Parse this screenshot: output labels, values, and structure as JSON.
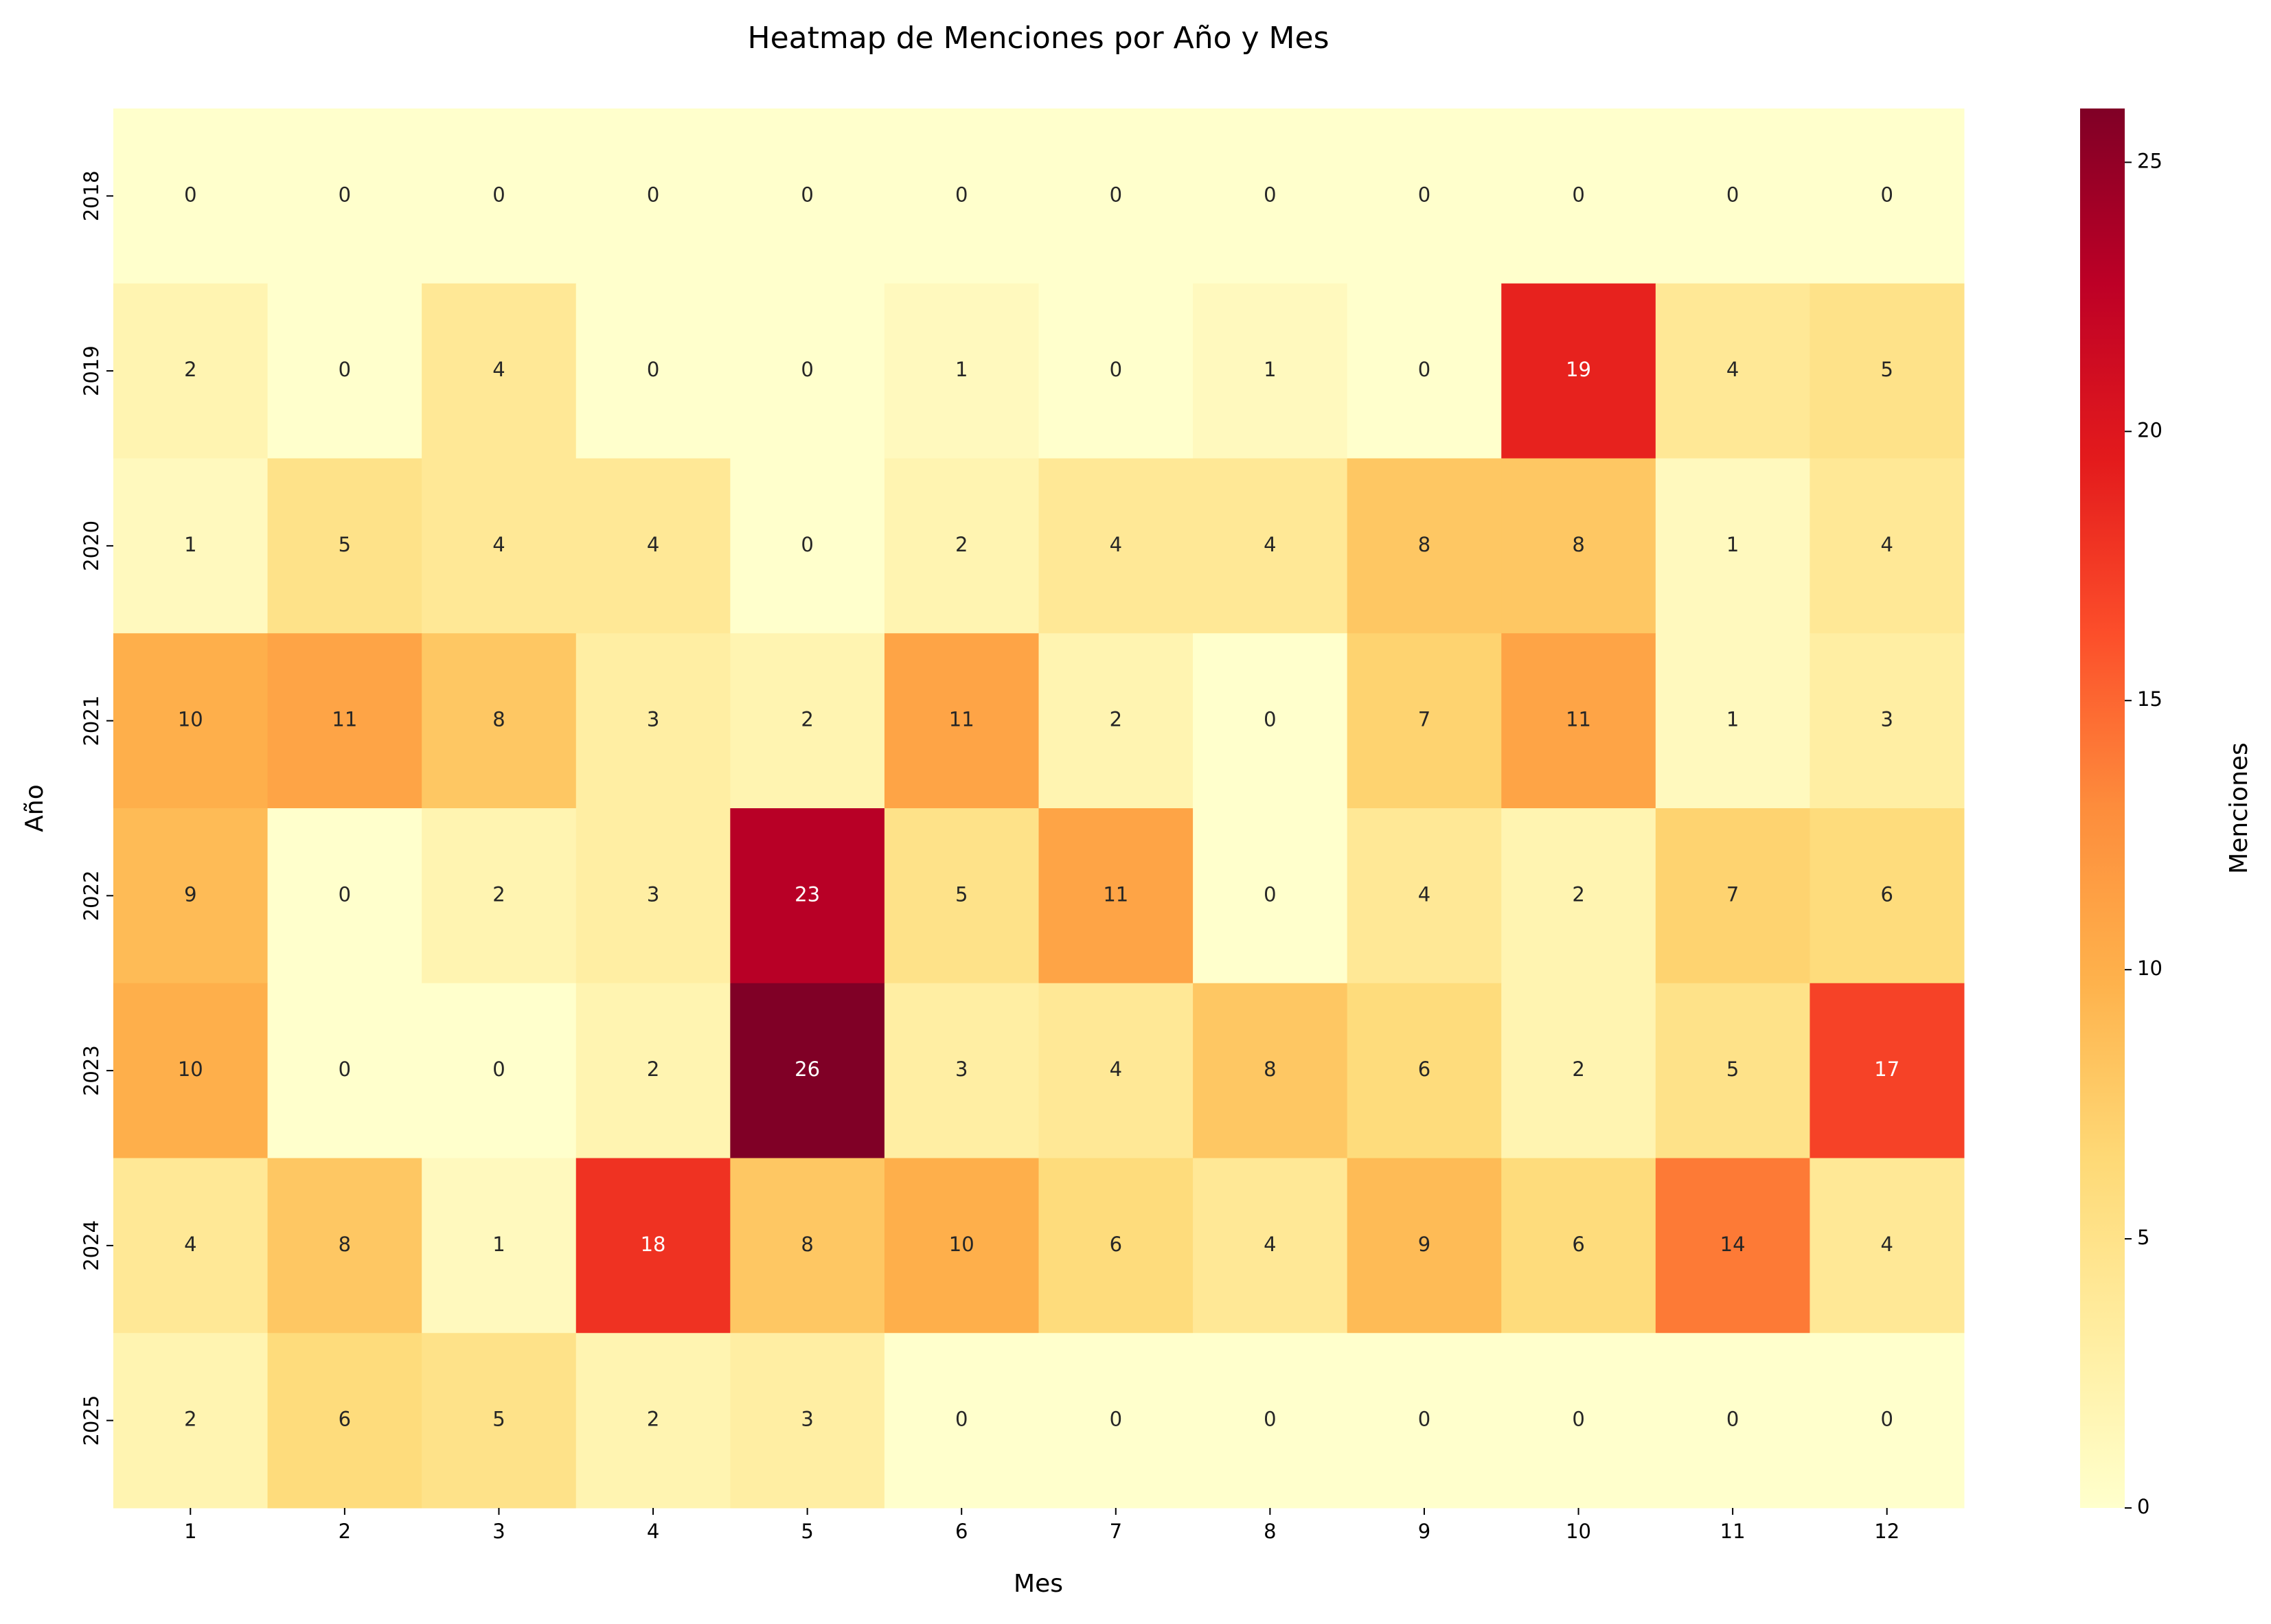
{
  "chart_data": {
    "type": "heatmap",
    "title": "Heatmap de Menciones por Año y Mes",
    "xlabel": "Mes",
    "ylabel": "Año",
    "x": [
      "1",
      "2",
      "3",
      "4",
      "5",
      "6",
      "7",
      "8",
      "9",
      "10",
      "11",
      "12"
    ],
    "y": [
      "2018",
      "2019",
      "2020",
      "2021",
      "2022",
      "2023",
      "2024",
      "2025"
    ],
    "values": [
      [
        0,
        0,
        0,
        0,
        0,
        0,
        0,
        0,
        0,
        0,
        0,
        0
      ],
      [
        2,
        0,
        4,
        0,
        0,
        1,
        0,
        1,
        0,
        19,
        4,
        5
      ],
      [
        1,
        5,
        4,
        4,
        0,
        2,
        4,
        4,
        8,
        8,
        1,
        4
      ],
      [
        10,
        11,
        8,
        3,
        2,
        11,
        2,
        0,
        7,
        11,
        1,
        3
      ],
      [
        9,
        0,
        2,
        3,
        23,
        5,
        11,
        0,
        4,
        2,
        7,
        6
      ],
      [
        10,
        0,
        0,
        2,
        26,
        3,
        4,
        8,
        6,
        2,
        5,
        17
      ],
      [
        4,
        8,
        1,
        18,
        8,
        10,
        6,
        4,
        9,
        6,
        14,
        4
      ],
      [
        2,
        6,
        5,
        2,
        3,
        0,
        0,
        0,
        0,
        0,
        0,
        0
      ]
    ],
    "colormap": "YlOrRd",
    "colorbar_label": "Menciones",
    "clim": [
      0,
      26
    ],
    "cticks": [
      0,
      5,
      10,
      15,
      20,
      25
    ]
  }
}
